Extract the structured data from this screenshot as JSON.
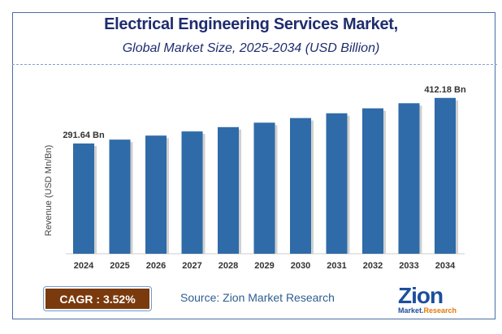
{
  "chart_data": {
    "type": "bar",
    "title": "Electrical Engineering Services Market,",
    "subtitle": "Global Market Size, 2025-2034 (USD Billion)",
    "ylabel": "Revenue (USD Mn/Bn)",
    "xlabel": "",
    "categories": [
      "2024",
      "2025",
      "2026",
      "2027",
      "2028",
      "2029",
      "2030",
      "2031",
      "2032",
      "2033",
      "2034"
    ],
    "values": [
      291.64,
      301.91,
      312.54,
      323.54,
      334.93,
      346.72,
      358.92,
      371.56,
      384.64,
      398.18,
      412.18
    ],
    "data_labels": {
      "0": "291.64 Bn",
      "10": "412.18 Bn"
    },
    "ylim": [
      0,
      412.18
    ],
    "grid": false,
    "bar_color": "#2f6ba8"
  },
  "footer": {
    "cagr": "CAGR : 3.52%",
    "source": "Source: Zion Market Research",
    "logo_top": "Zion",
    "logo_bottom_1": "Market.",
    "logo_bottom_2": "Research"
  }
}
